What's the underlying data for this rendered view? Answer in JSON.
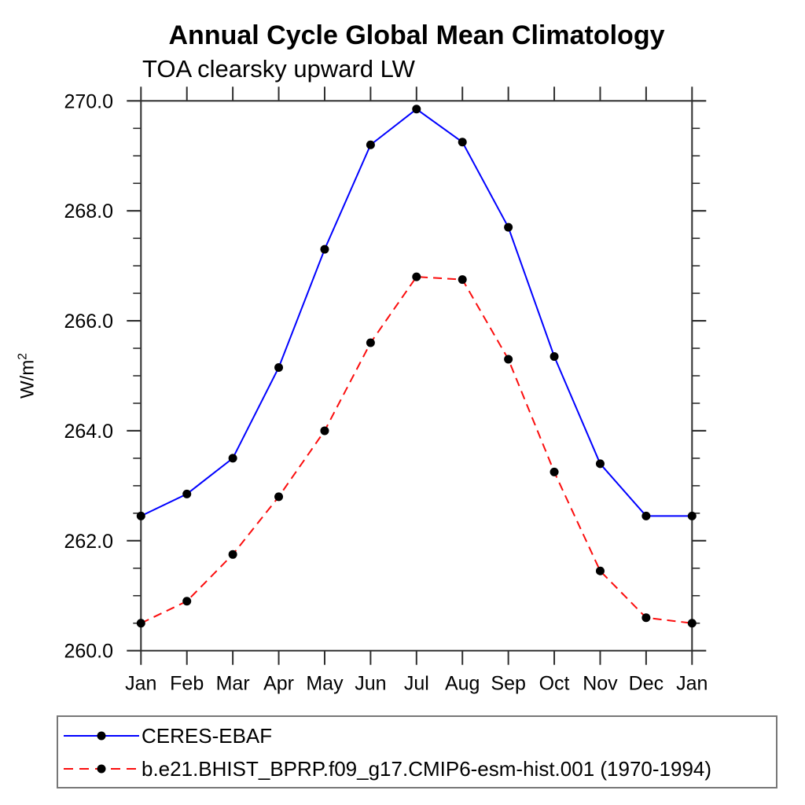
{
  "chart_data": {
    "type": "line",
    "title": "Annual Cycle Global Mean Climatology",
    "subtitle": "TOA clearsky upward LW",
    "ylabel": {
      "base": "W/m",
      "sup": "2"
    },
    "categories": [
      "Jan",
      "Feb",
      "Mar",
      "Apr",
      "May",
      "Jun",
      "Jul",
      "Aug",
      "Sep",
      "Oct",
      "Nov",
      "Dec",
      "Jan"
    ],
    "ylim": [
      260.0,
      270.0
    ],
    "ytick_major_step": 2.0,
    "ytick_minor_step": 0.5,
    "ytick_labels": [
      "260.0",
      "262.0",
      "264.0",
      "266.0",
      "268.0",
      "270.0"
    ],
    "grid": false,
    "axis_color": "#2e2e2e",
    "marker_color": "#000000",
    "legend_position": "bottom",
    "series": [
      {
        "name": "CERES-EBAF",
        "color": "#0000ff",
        "line_style": "solid",
        "marker": "filled-circle",
        "values": [
          262.45,
          262.85,
          263.5,
          265.15,
          267.3,
          269.2,
          269.85,
          269.25,
          267.7,
          265.35,
          263.4,
          262.45,
          262.45
        ]
      },
      {
        "name": "b.e21.BHIST_BPRP.f09_g17.CMIP6-esm-hist.001 (1970-1994)",
        "color": "#fb0d0d",
        "line_style": "dashed",
        "marker": "filled-circle",
        "values": [
          260.5,
          260.9,
          261.75,
          262.8,
          264.0,
          265.6,
          266.8,
          266.75,
          265.3,
          263.25,
          261.45,
          260.6,
          260.5
        ]
      }
    ]
  }
}
